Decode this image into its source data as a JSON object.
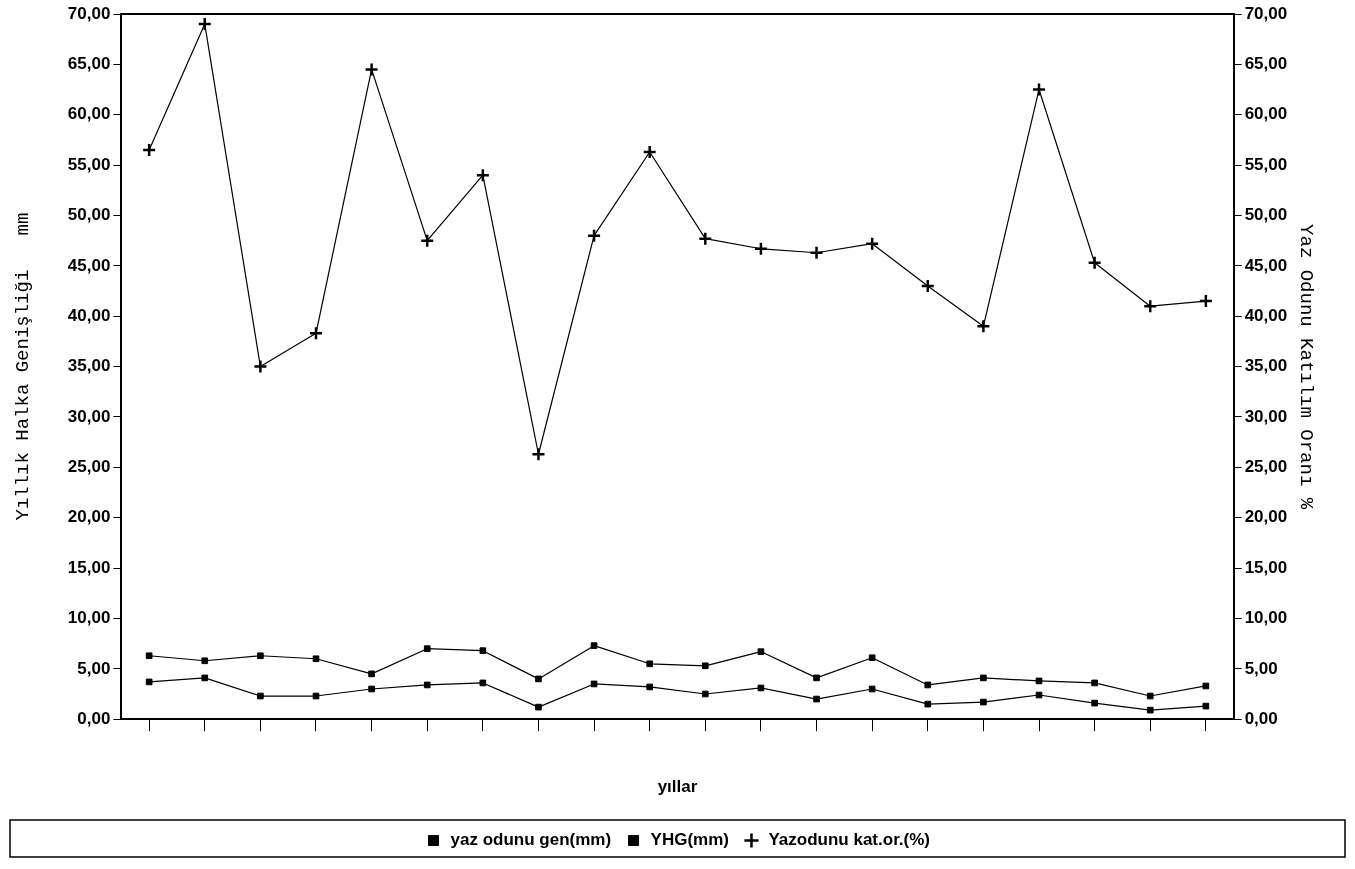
{
  "chart_data": {
    "type": "line",
    "xlabel": "yıllar",
    "ylabel": "Yıllık Halka Genişliği   mm",
    "y2label": "Yaz Odunu Katılım Oranı %",
    "categories": [
      null,
      null,
      null,
      null,
      null,
      null,
      null,
      null,
      null,
      null,
      null,
      null,
      null,
      null,
      null,
      null,
      null,
      null,
      null,
      null
    ],
    "series": [
      {
        "name": "yaz odunu gen(mm)",
        "color": "#000000",
        "marker": "square",
        "values": [
          3.7,
          4.1,
          2.3,
          2.3,
          3.0,
          3.4,
          3.6,
          1.2,
          3.5,
          3.2,
          2.5,
          3.1,
          2.0,
          3.0,
          1.5,
          1.7,
          2.4,
          1.6,
          0.9,
          1.3
        ]
      },
      {
        "name": "YHG(mm)",
        "color": "#000000",
        "marker": "square",
        "values": [
          6.3,
          5.8,
          6.3,
          6.0,
          4.5,
          7.0,
          6.8,
          4.0,
          7.3,
          5.5,
          5.3,
          6.7,
          4.1,
          6.1,
          3.4,
          4.1,
          3.8,
          3.6,
          2.3,
          3.3
        ]
      },
      {
        "name": "Yazodunu kat.or.(%)",
        "color": "#000000",
        "marker": "cross",
        "axis": "y2",
        "values": [
          56.5,
          69,
          35,
          38.3,
          64.5,
          47.5,
          54,
          26.3,
          48,
          56.3,
          47.7,
          46.7,
          46.3,
          47.2,
          43,
          39,
          62.5,
          45.3,
          41,
          41.5
        ]
      }
    ],
    "ylim": [
      0,
      70
    ],
    "yticks": [
      {
        "value": 0,
        "label": "0,00"
      },
      {
        "value": 5,
        "label": "5,00"
      },
      {
        "value": 10,
        "label": "10,00"
      },
      {
        "value": 15,
        "label": "15,00"
      },
      {
        "value": 20,
        "label": "20,00"
      },
      {
        "value": 25,
        "label": "25,00"
      },
      {
        "value": 30,
        "label": "30,00"
      },
      {
        "value": 35,
        "label": "35,00"
      },
      {
        "value": 40,
        "label": "40,00"
      },
      {
        "value": 45,
        "label": "45,00"
      },
      {
        "value": 50,
        "label": "50,00"
      },
      {
        "value": 55,
        "label": "55,00"
      },
      {
        "value": 60,
        "label": "60,00"
      },
      {
        "value": 65,
        "label": "65,00"
      },
      {
        "value": 70,
        "label": "70,00"
      }
    ],
    "y2lim": [
      0,
      70
    ],
    "y2ticks": [
      {
        "value": 0,
        "label": "0,00"
      },
      {
        "value": 5,
        "label": "5,00"
      },
      {
        "value": 10,
        "label": "10,00"
      },
      {
        "value": 15,
        "label": "15,00"
      },
      {
        "value": 20,
        "label": "20,00"
      },
      {
        "value": 25,
        "label": "25,00"
      },
      {
        "value": 30,
        "label": "30,00"
      },
      {
        "value": 35,
        "label": "35,00"
      },
      {
        "value": 40,
        "label": "40,00"
      },
      {
        "value": 45,
        "label": "45,00"
      },
      {
        "value": 50,
        "label": "50,00"
      },
      {
        "value": 55,
        "label": "55,00"
      },
      {
        "value": 60,
        "label": "60,00"
      },
      {
        "value": 65,
        "label": "65,00"
      },
      {
        "value": 70,
        "label": "70,00"
      }
    ],
    "grid": false,
    "legend": "bottom",
    "line_style": "solid"
  }
}
